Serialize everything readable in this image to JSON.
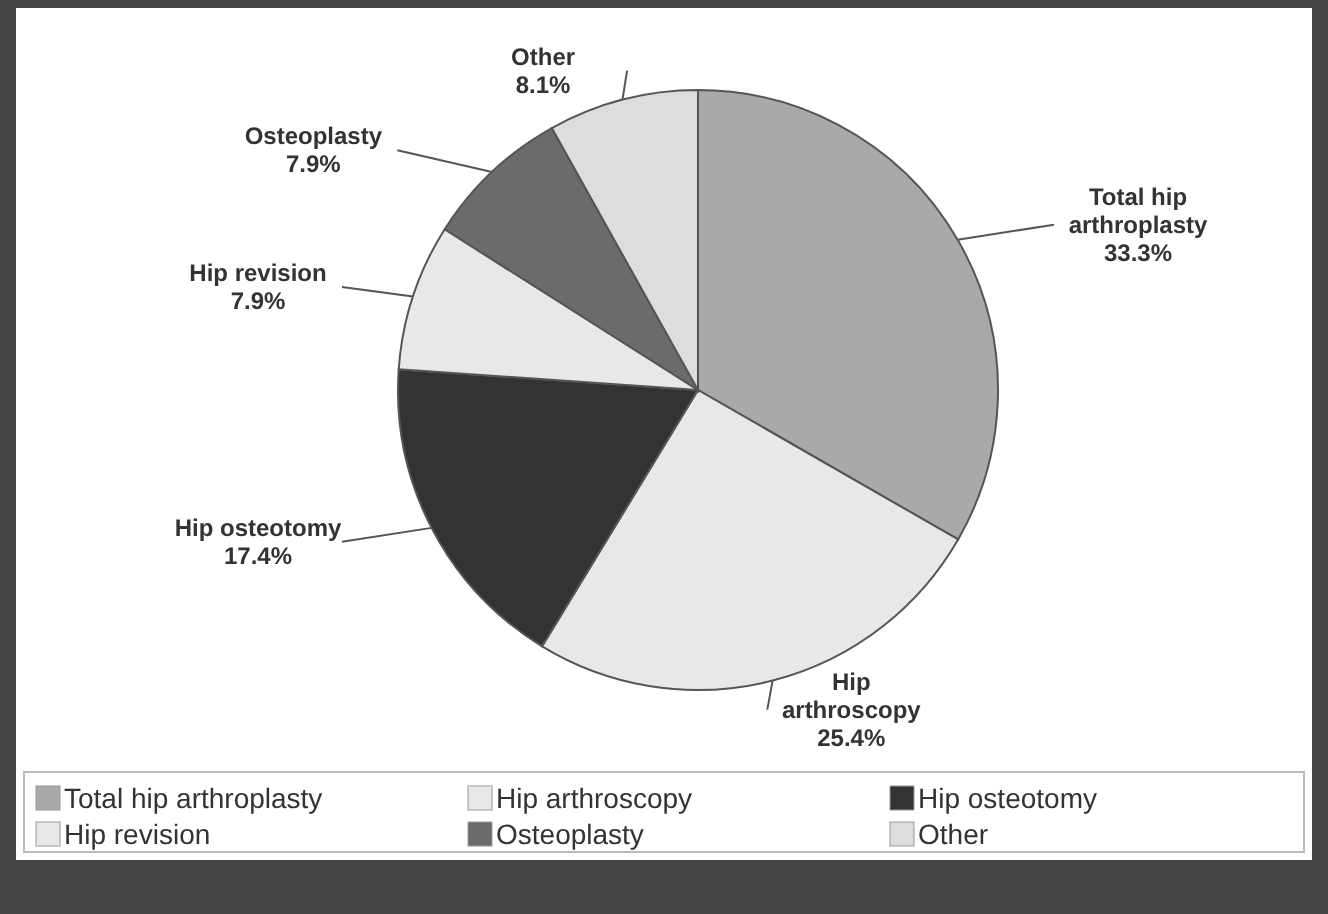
{
  "chart_data": {
    "type": "pie",
    "categories": [
      "Total hip arthroplasty",
      "Hip arthroscopy",
      "Hip osteotomy",
      "Hip revision",
      "Osteoplasty",
      "Other"
    ],
    "values": [
      33.3,
      25.4,
      17.4,
      7.9,
      7.9,
      8.1
    ],
    "colors": [
      "#a9a9a9",
      "#e8e8e8",
      "#333333",
      "#e8e8e8",
      "#6b6b6b",
      "#dddddd"
    ],
    "value_labels": [
      "33.3%",
      "25.4%",
      "17.4%",
      "7.9%",
      "7.9%",
      "8.1%"
    ],
    "legend": "bottom"
  }
}
